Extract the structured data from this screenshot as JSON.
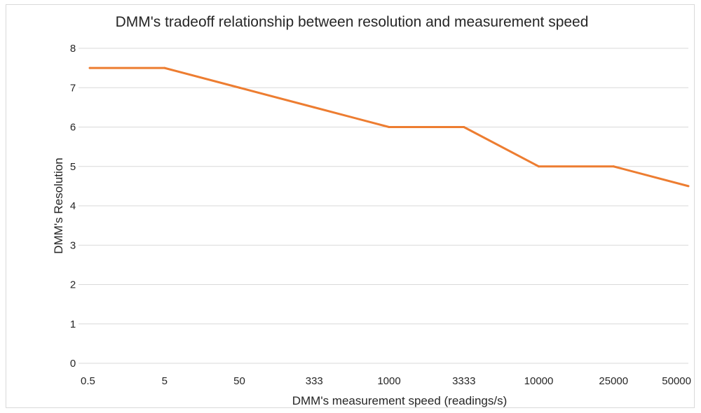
{
  "chart_data": {
    "type": "line",
    "title": "DMM's tradeoff relationship between resolution and measurement speed",
    "xlabel": "DMM's measurement speed (readings/s)",
    "ylabel": "DMM's Resolution",
    "categories": [
      "0.5",
      "5",
      "50",
      "333",
      "1000",
      "3333",
      "10000",
      "25000",
      "50000"
    ],
    "series": [
      {
        "name": "Resolution",
        "values": [
          7.5,
          7.5,
          7,
          6.5,
          6,
          6,
          5,
          5,
          4.5
        ],
        "color": "#ED7D31"
      }
    ],
    "ylim": [
      0,
      8
    ],
    "yticks": [
      "0",
      "1",
      "2",
      "3",
      "4",
      "5",
      "6",
      "7",
      "8"
    ],
    "grid": true,
    "legend": "none"
  }
}
